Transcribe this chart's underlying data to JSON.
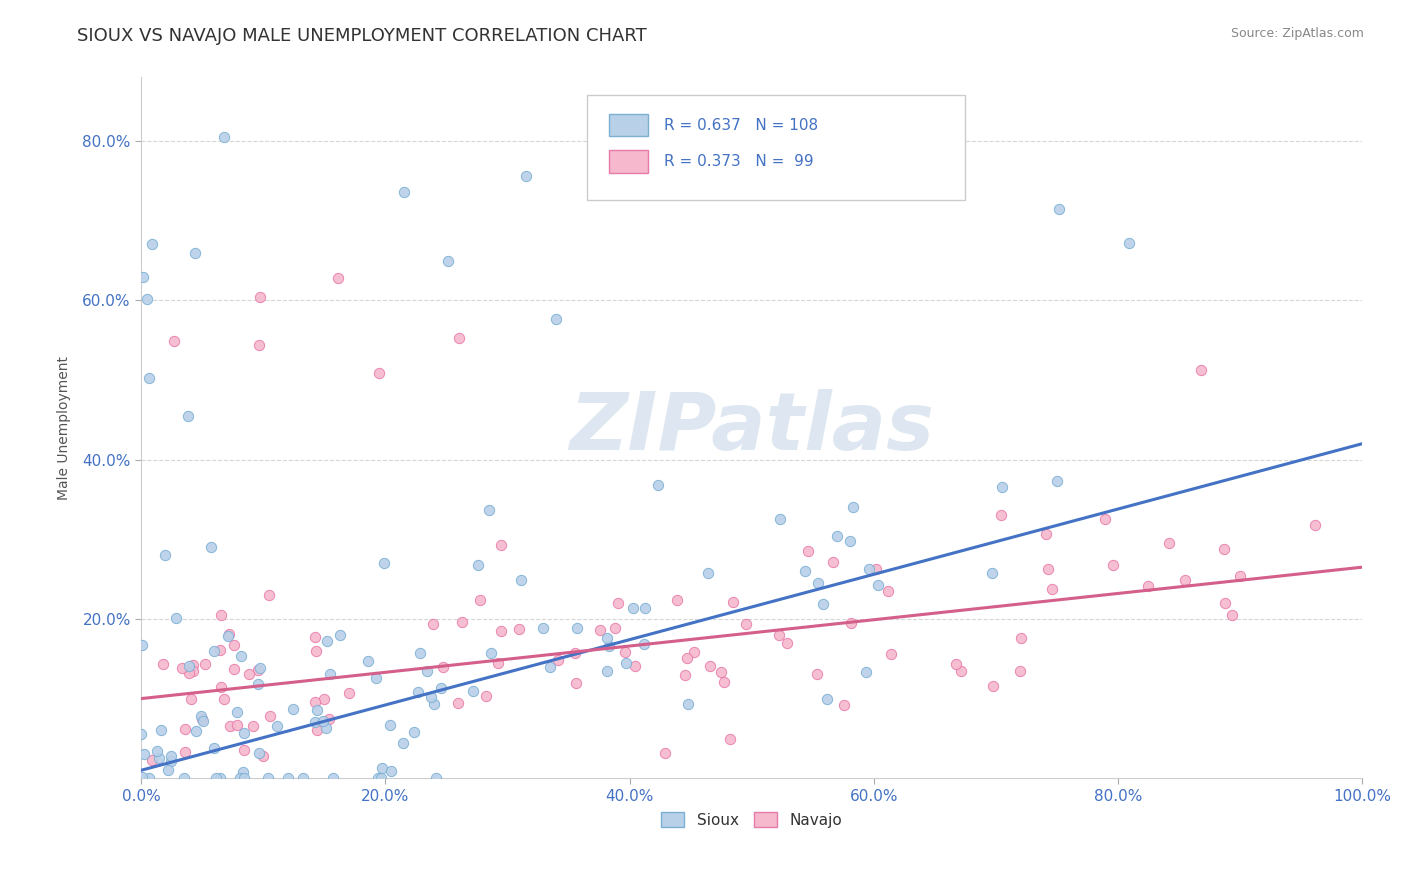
{
  "title": "SIOUX VS NAVAJO MALE UNEMPLOYMENT CORRELATION CHART",
  "source_text": "Source: ZipAtlas.com",
  "ylabel": "Male Unemployment",
  "xlim": [
    0.0,
    1.0
  ],
  "ylim": [
    0.0,
    0.88
  ],
  "xticks": [
    0.0,
    0.2,
    0.4,
    0.6,
    0.8,
    1.0
  ],
  "xticklabels": [
    "0.0%",
    "20.0%",
    "40.0%",
    "60.0%",
    "80.0%",
    "100.0%"
  ],
  "yticks": [
    0.2,
    0.4,
    0.6,
    0.8
  ],
  "yticklabels": [
    "20.0%",
    "40.0%",
    "60.0%",
    "80.0%"
  ],
  "sioux_fill_color": "#b8d0e8",
  "sioux_edge_color": "#7bafd4",
  "navajo_fill_color": "#f5b8cc",
  "navajo_edge_color": "#e87aaa",
  "sioux_line_color": "#4472c4",
  "navajo_line_color": "#d45f8a",
  "tick_color": "#4472c4",
  "legend_text_color": "#4472c4",
  "watermark": "ZIPatlas",
  "watermark_color": "#c8d8e8",
  "title_fontsize": 13,
  "source_fontsize": 9,
  "axis_label_fontsize": 10,
  "tick_fontsize": 11,
  "background_color": "#ffffff",
  "grid_color": "#cccccc",
  "sioux_R": 0.637,
  "sioux_N": 108,
  "navajo_R": 0.373,
  "navajo_N": 99,
  "sioux_trend_x0": 0.0,
  "sioux_trend_y0": 0.01,
  "sioux_trend_x1": 1.0,
  "sioux_trend_y1": 0.42,
  "navajo_trend_x0": 0.0,
  "navajo_trend_y0": 0.1,
  "navajo_trend_x1": 1.0,
  "navajo_trend_y1": 0.265
}
